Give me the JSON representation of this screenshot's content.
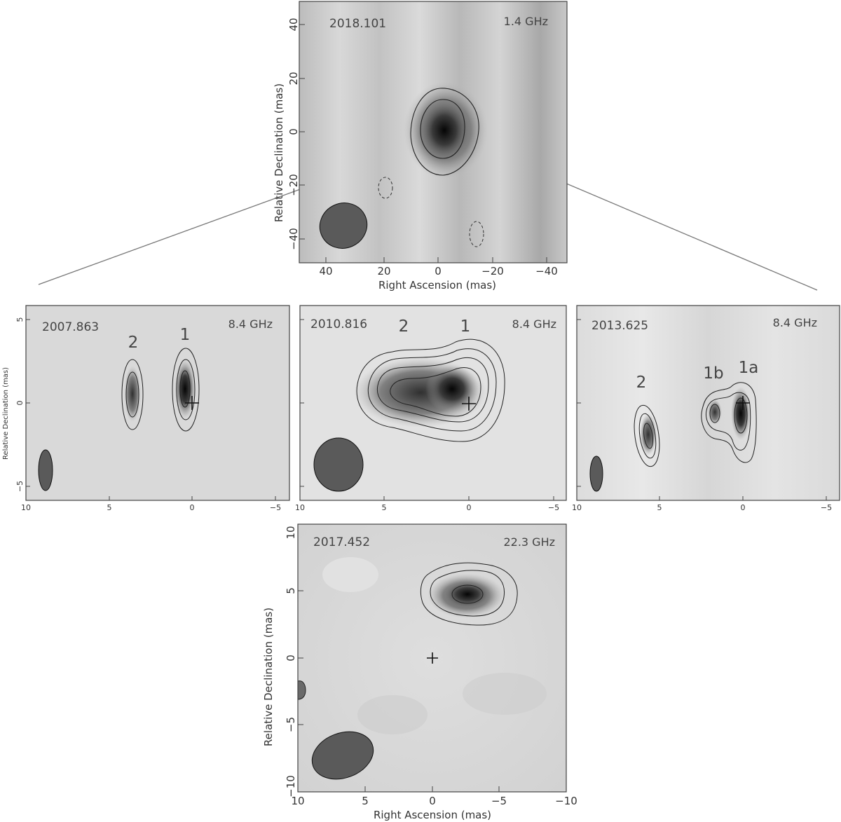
{
  "panels": {
    "p1": {
      "epoch": "2018.101",
      "freq": "1.4 GHz",
      "xticks": [
        "40",
        "20",
        "0",
        "−20",
        "−40"
      ],
      "yticks": [
        "40",
        "20",
        "0",
        "−20",
        "−40"
      ],
      "xlabel": "Right Ascension  (mas)",
      "ylabel": "Relative Declination  (mas)"
    },
    "p2": {
      "epoch": "2007.863",
      "freq": "8.4 GHz",
      "comps": [
        "2",
        "1"
      ],
      "xticks": [
        "10",
        "5",
        "0",
        "−5"
      ],
      "yticks": [
        "5",
        "0",
        "−5"
      ],
      "ylabel": "Relative Declination  (mas)"
    },
    "p3": {
      "epoch": "2010.816",
      "freq": "8.4 GHz",
      "comps": [
        "2",
        "1"
      ],
      "xticks": [
        "10",
        "5",
        "0",
        "−5"
      ]
    },
    "p4": {
      "epoch": "2013.625",
      "freq": "8.4 GHz",
      "comps": [
        "2",
        "1b",
        "1a"
      ],
      "xticks": [
        "10",
        "5",
        "0",
        "−5"
      ]
    },
    "p5": {
      "epoch": "2017.452",
      "freq": "22.3 GHz",
      "xticks": [
        "10",
        "5",
        "0",
        "−5",
        "−10"
      ],
      "yticks": [
        "10",
        "5",
        "0",
        "−5",
        "−10"
      ],
      "xlabel": "Right Ascension  (mas)",
      "ylabel": "Relative Declination  (mas)"
    }
  },
  "colors": {
    "beam": "#5a5a5a",
    "contour": "#222222",
    "frame": "#444444"
  }
}
